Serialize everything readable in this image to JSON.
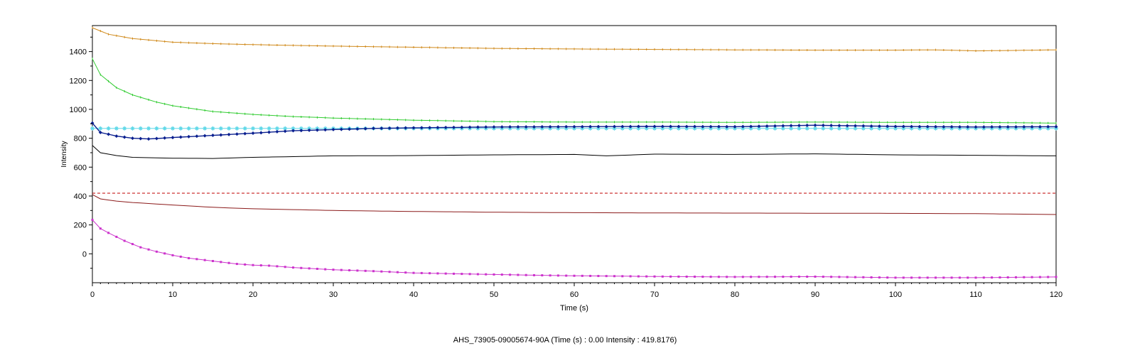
{
  "status_text": "AHS_73905-09005674-90A (Time (s) : 0.00  Intensity : 419.8176)",
  "chart_data": {
    "type": "line",
    "xlabel": "Time (s)",
    "ylabel": "Intensity",
    "xlim": [
      0,
      120
    ],
    "ylim": [
      -200,
      1580
    ],
    "x_ticks": [
      0,
      10,
      20,
      30,
      40,
      50,
      60,
      70,
      80,
      90,
      100,
      110,
      120
    ],
    "y_ticks": [
      0,
      200,
      400,
      600,
      800,
      1000,
      1200,
      1400
    ],
    "grid": false,
    "legend": "none",
    "series": [
      {
        "color": "#d08a1c",
        "marker": "tick",
        "x": [
          0,
          2,
          5,
          10,
          15,
          20,
          30,
          40,
          50,
          60,
          70,
          80,
          90,
          100,
          105,
          110,
          115,
          120
        ],
        "y": [
          1565,
          1520,
          1490,
          1465,
          1455,
          1448,
          1438,
          1430,
          1422,
          1418,
          1415,
          1412,
          1410,
          1410,
          1412,
          1405,
          1408,
          1412
        ]
      },
      {
        "color": "#33cc33",
        "marker": "tick",
        "x": [
          0,
          1,
          3,
          5,
          8,
          10,
          15,
          20,
          25,
          30,
          40,
          50,
          60,
          70,
          80,
          90,
          100,
          110,
          120
        ],
        "y": [
          1350,
          1240,
          1150,
          1100,
          1050,
          1025,
          985,
          965,
          950,
          940,
          925,
          915,
          912,
          912,
          910,
          912,
          910,
          910,
          905
        ]
      },
      {
        "color": "#5fd8e8",
        "marker": "star",
        "x": [
          0,
          10,
          20,
          30,
          40,
          50,
          60,
          70,
          80,
          90,
          100,
          110,
          120
        ],
        "y": [
          868,
          868,
          868,
          868,
          868,
          868,
          868,
          868,
          868,
          868,
          868,
          868,
          868
        ]
      },
      {
        "color": "#0a1f8f",
        "marker": "diamond",
        "x": [
          0,
          1,
          3,
          5,
          7,
          10,
          15,
          20,
          25,
          30,
          35,
          40,
          50,
          60,
          70,
          80,
          90,
          100,
          110,
          120
        ],
        "y": [
          905,
          840,
          815,
          800,
          795,
          805,
          820,
          835,
          852,
          860,
          868,
          872,
          878,
          880,
          882,
          880,
          890,
          882,
          878,
          880
        ]
      },
      {
        "color": "#000000",
        "marker": "none",
        "x": [
          0,
          1,
          3,
          5,
          10,
          15,
          20,
          30,
          40,
          50,
          60,
          64,
          70,
          80,
          90,
          100,
          110,
          120
        ],
        "y": [
          750,
          700,
          680,
          668,
          662,
          660,
          668,
          678,
          680,
          685,
          688,
          678,
          690,
          688,
          692,
          685,
          682,
          678
        ]
      },
      {
        "color": "#c00000",
        "marker": "none",
        "dashed": true,
        "x": [
          0,
          120
        ],
        "y": [
          419.8,
          419.8
        ]
      },
      {
        "color": "#8b1a1a",
        "marker": "none",
        "x": [
          0,
          1,
          3,
          5,
          10,
          15,
          20,
          30,
          40,
          50,
          60,
          70,
          80,
          90,
          100,
          110,
          120
        ],
        "y": [
          410,
          380,
          365,
          355,
          338,
          322,
          312,
          300,
          293,
          288,
          285,
          283,
          282,
          281,
          280,
          278,
          272
        ]
      },
      {
        "color": "#cc33cc",
        "marker": "square",
        "x": [
          0,
          1,
          2,
          4,
          6,
          8,
          10,
          12,
          15,
          18,
          20,
          22,
          25,
          30,
          35,
          40,
          45,
          50,
          55,
          60,
          70,
          80,
          90,
          100,
          110,
          120
        ],
        "y": [
          235,
          175,
          145,
          90,
          45,
          15,
          -10,
          -30,
          -50,
          -70,
          -78,
          -82,
          -95,
          -110,
          -120,
          -132,
          -138,
          -143,
          -148,
          -152,
          -157,
          -160,
          -158,
          -165,
          -165,
          -160
        ]
      }
    ]
  }
}
